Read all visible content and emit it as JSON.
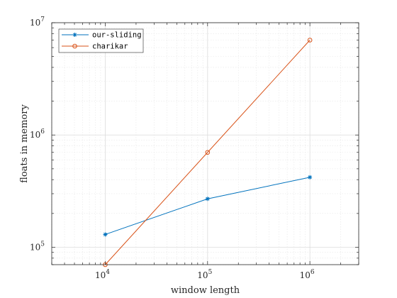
{
  "chart_data": {
    "type": "line",
    "xlabel": "window length",
    "ylabel": "floats in memory",
    "xscale": "log",
    "yscale": "log",
    "xlim": [
      3000,
      3000000
    ],
    "ylim": [
      70000,
      10000000
    ],
    "x_ticks": [
      {
        "base": "10",
        "exp": "4"
      },
      {
        "base": "10",
        "exp": "5"
      },
      {
        "base": "10",
        "exp": "6"
      }
    ],
    "y_ticks": [
      {
        "base": "10",
        "exp": "5"
      },
      {
        "base": "10",
        "exp": "6"
      },
      {
        "base": "10",
        "exp": "7"
      }
    ],
    "grid": true,
    "minor_grid": true,
    "legend_position": "top-left",
    "series": [
      {
        "name": "our-sliding",
        "marker": "star",
        "color": "#0072BD",
        "x": [
          10000,
          100000,
          1000000
        ],
        "y": [
          130000,
          270000,
          420000
        ]
      },
      {
        "name": "charikar",
        "marker": "circle",
        "color": "#D95319",
        "x": [
          10000,
          100000,
          1000000
        ],
        "y": [
          70000,
          700000,
          7000000
        ]
      }
    ]
  }
}
